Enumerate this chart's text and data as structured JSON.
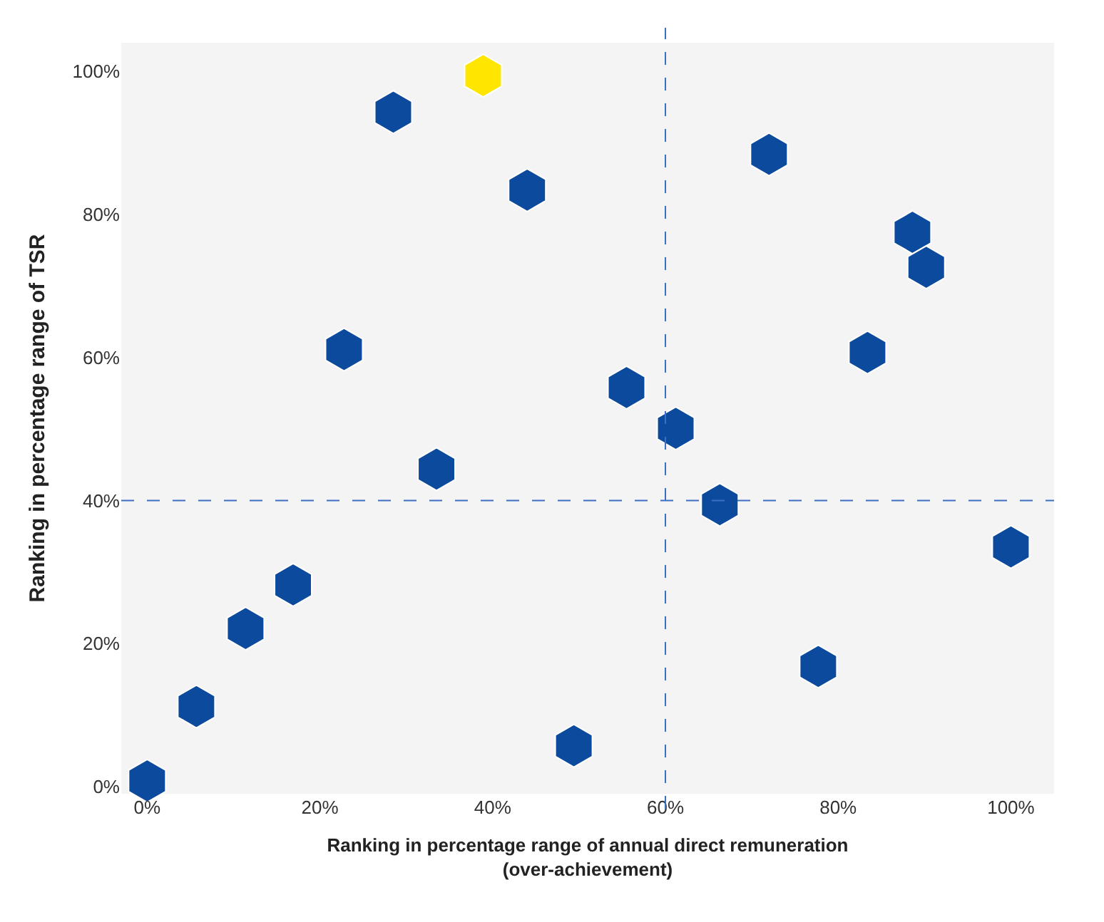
{
  "chart_data": {
    "type": "scatter",
    "xlabel": "Ranking in percentage range of annual direct remuneration\n(over-achievement)",
    "ylabel": "Ranking in percentage range of TSR",
    "x": [
      0,
      5.7,
      11.4,
      16.9,
      22.8,
      28.5,
      33.5,
      38.9,
      44.0,
      49.4,
      55.5,
      61.2,
      66.3,
      72.0,
      77.7,
      83.4,
      88.6,
      90.2,
      100
    ],
    "values": [
      0.8,
      11.2,
      22.1,
      28.2,
      61.1,
      94.3,
      44.4,
      99.4,
      83.4,
      5.7,
      55.8,
      50.1,
      39.4,
      88.4,
      16.8,
      60.7,
      77.5,
      72.6,
      33.5
    ],
    "colors": [
      "#0b4a9c",
      "#0b4a9c",
      "#0b4a9c",
      "#0b4a9c",
      "#0b4a9c",
      "#0b4a9c",
      "#0b4a9c",
      "#ffe600",
      "#0b4a9c",
      "#0b4a9c",
      "#0b4a9c",
      "#0b4a9c",
      "#0b4a9c",
      "#0b4a9c",
      "#0b4a9c",
      "#0b4a9c",
      "#0b4a9c",
      "#0b4a9c",
      "#0b4a9c"
    ],
    "xlim": [
      -3,
      105
    ],
    "ylim": [
      -1,
      104
    ],
    "xticks": [
      {
        "value": 0,
        "label": "0%"
      },
      {
        "value": 20,
        "label": "20%"
      },
      {
        "value": 40,
        "label": "40%"
      },
      {
        "value": 60,
        "label": "60%"
      },
      {
        "value": 80,
        "label": "80%"
      },
      {
        "value": 100,
        "label": "100%"
      }
    ],
    "yticks": [
      {
        "value": 0,
        "label": "0%"
      },
      {
        "value": 20,
        "label": "20%"
      },
      {
        "value": 40,
        "label": "40%"
      },
      {
        "value": 60,
        "label": "60%"
      },
      {
        "value": 80,
        "label": "80%"
      },
      {
        "value": 100,
        "label": "100%"
      }
    ],
    "ref_lines": [
      {
        "axis": "x",
        "value": 60,
        "color": "#3a6fc4",
        "line_style": "dashed"
      },
      {
        "axis": "y",
        "value": 40,
        "color": "#3a6fc4",
        "line_style": "dashed"
      }
    ]
  }
}
